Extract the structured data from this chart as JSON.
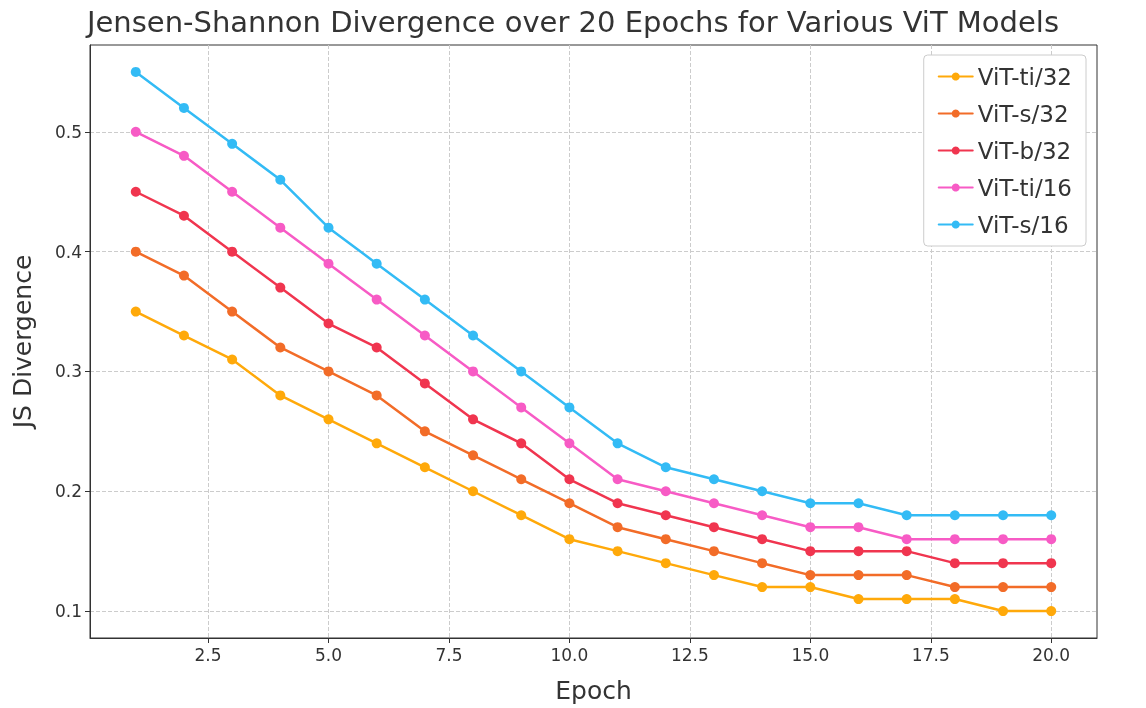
{
  "chart_data": {
    "type": "line",
    "title": "Jensen-Shannon Divergence over 20 Epochs for Various ViT Models",
    "xlabel": "Epoch",
    "ylabel": "JS Divergence",
    "x": [
      1,
      2,
      3,
      4,
      5,
      6,
      7,
      8,
      9,
      10,
      11,
      12,
      13,
      14,
      15,
      16,
      17,
      18,
      19,
      20
    ],
    "series": [
      {
        "name": "ViT-ti/32",
        "color": "#ffa90a",
        "values": [
          0.35,
          0.33,
          0.31,
          0.28,
          0.26,
          0.24,
          0.22,
          0.2,
          0.18,
          0.16,
          0.15,
          0.14,
          0.13,
          0.12,
          0.12,
          0.11,
          0.11,
          0.11,
          0.1,
          0.1
        ]
      },
      {
        "name": "ViT-s/32",
        "color": "#f26c28",
        "values": [
          0.4,
          0.38,
          0.35,
          0.32,
          0.3,
          0.28,
          0.25,
          0.23,
          0.21,
          0.19,
          0.17,
          0.16,
          0.15,
          0.14,
          0.13,
          0.13,
          0.13,
          0.12,
          0.12,
          0.12
        ]
      },
      {
        "name": "ViT-b/32",
        "color": "#f0354f",
        "values": [
          0.45,
          0.43,
          0.4,
          0.37,
          0.34,
          0.32,
          0.29,
          0.26,
          0.24,
          0.21,
          0.19,
          0.18,
          0.17,
          0.16,
          0.15,
          0.15,
          0.15,
          0.14,
          0.14,
          0.14
        ]
      },
      {
        "name": "ViT-ti/16",
        "color": "#f75bc5",
        "values": [
          0.5,
          0.48,
          0.45,
          0.42,
          0.39,
          0.36,
          0.33,
          0.3,
          0.27,
          0.24,
          0.21,
          0.2,
          0.19,
          0.18,
          0.17,
          0.17,
          0.16,
          0.16,
          0.16,
          0.16
        ]
      },
      {
        "name": "ViT-s/16",
        "color": "#33bbf5",
        "values": [
          0.55,
          0.52,
          0.49,
          0.46,
          0.42,
          0.39,
          0.36,
          0.33,
          0.3,
          0.27,
          0.24,
          0.22,
          0.21,
          0.2,
          0.19,
          0.19,
          0.18,
          0.18,
          0.18,
          0.18
        ]
      }
    ],
    "xlim": [
      0.05,
      20.95
    ],
    "ylim": [
      0.0775,
      0.5725
    ],
    "xticks": [
      2.5,
      {
        "value": 5,
        "label": "5.0"
      },
      7.5,
      {
        "value": 10,
        "label": "10.0"
      },
      12.5,
      {
        "value": 15,
        "label": "15.0"
      },
      17.5,
      {
        "value": 20,
        "label": "20.0"
      }
    ],
    "yticks": [
      0.1,
      0.2,
      0.3,
      0.4,
      0.5
    ],
    "grid": true,
    "legend": "top right",
    "marker": "circle",
    "line_style": "solid"
  }
}
